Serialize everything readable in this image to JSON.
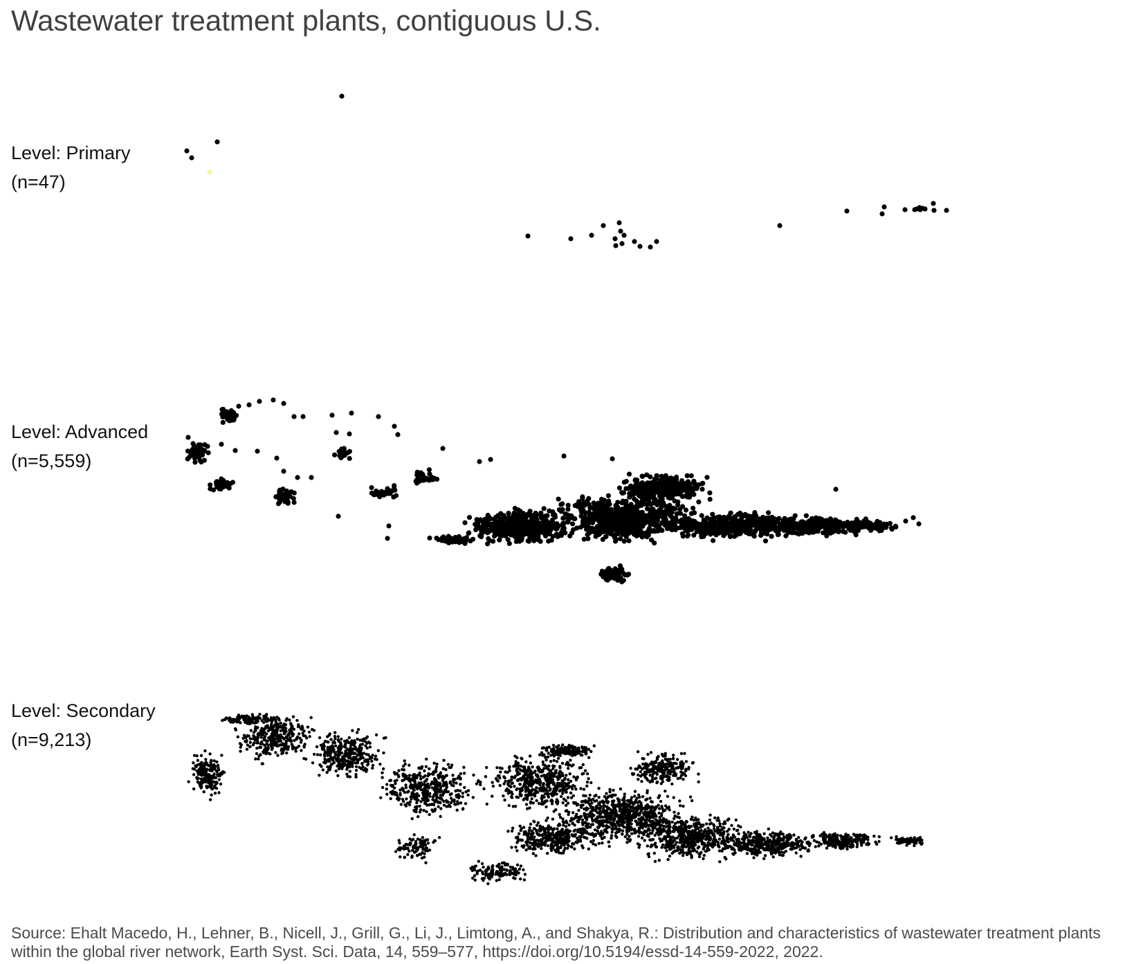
{
  "title": "Wastewater treatment plants, contiguous U.S.",
  "panels": [
    {
      "level": "Level: Primary",
      "count": "(n=47)"
    },
    {
      "level": "Level: Advanced",
      "count": "(n=5,559)"
    },
    {
      "level": "Level: Secondary",
      "count": "(n=9,213)"
    }
  ],
  "source": "Source: Ehalt Macedo, H., Lehner, B., Nicell, J., Grill, G., Li, J., Limtong, A., and Shakya, R.: Distribution and characteristics of wastewater treatment plants within the global river network, Earth Syst. Sci. Data, 14, 559–577, https://doi.org/10.5194/essd-14-559-2022, 2022.",
  "colors": {
    "point": "#000000",
    "title": "#404040",
    "source": "#4a4a4a",
    "highlight": "#f5f5a0"
  }
}
